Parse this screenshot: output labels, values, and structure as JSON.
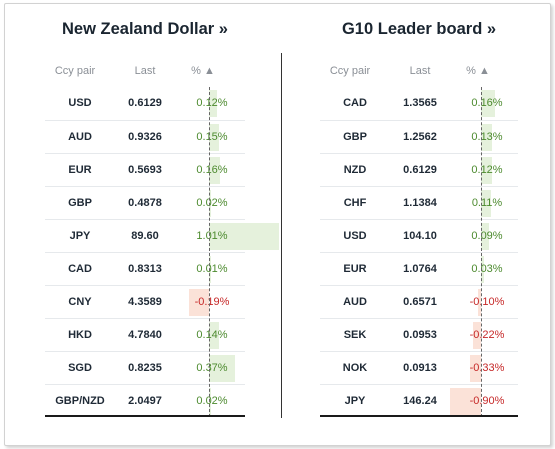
{
  "left_panel": {
    "title": "New Zealand Dollar »",
    "headers": {
      "pair": "Ccy pair",
      "last": "Last",
      "pct": "% ▲"
    },
    "rows": [
      {
        "pair": "USD",
        "last": "0.6129",
        "pct": "0.12%",
        "value": 0.12
      },
      {
        "pair": "AUD",
        "last": "0.9326",
        "pct": "0.15%",
        "value": 0.15
      },
      {
        "pair": "EUR",
        "last": "0.5693",
        "pct": "0.16%",
        "value": 0.16
      },
      {
        "pair": "GBP",
        "last": "0.4878",
        "pct": "0.02%",
        "value": 0.02
      },
      {
        "pair": "JPY",
        "last": "89.60",
        "pct": "1.01%",
        "value": 1.01
      },
      {
        "pair": "CAD",
        "last": "0.8313",
        "pct": "0.01%",
        "value": 0.01
      },
      {
        "pair": "CNY",
        "last": "4.3589",
        "pct": "-0.19%",
        "value": -0.19
      },
      {
        "pair": "HKD",
        "last": "4.7840",
        "pct": "0.14%",
        "value": 0.14
      },
      {
        "pair": "SGD",
        "last": "0.8235",
        "pct": "0.37%",
        "value": 0.37
      },
      {
        "pair": "GBP/NZD",
        "last": "2.0497",
        "pct": "0.02%",
        "value": 0.02
      }
    ]
  },
  "right_panel": {
    "title": "G10 Leader board »",
    "headers": {
      "pair": "Ccy pair",
      "last": "Last",
      "pct": "% ▲"
    },
    "rows": [
      {
        "pair": "CAD",
        "last": "1.3565",
        "pct": "0.16%",
        "value": 0.16
      },
      {
        "pair": "GBP",
        "last": "1.2562",
        "pct": "0.13%",
        "value": 0.13
      },
      {
        "pair": "NZD",
        "last": "0.6129",
        "pct": "0.12%",
        "value": 0.12
      },
      {
        "pair": "CHF",
        "last": "1.1384",
        "pct": "0.11%",
        "value": 0.11
      },
      {
        "pair": "USD",
        "last": "104.10",
        "pct": "0.09%",
        "value": 0.09
      },
      {
        "pair": "EUR",
        "last": "1.0764",
        "pct": "0.03%",
        "value": 0.03
      },
      {
        "pair": "AUD",
        "last": "0.6571",
        "pct": "-0.10%",
        "value": -0.1
      },
      {
        "pair": "SEK",
        "last": "0.0953",
        "pct": "-0.22%",
        "value": -0.22
      },
      {
        "pair": "NOK",
        "last": "0.0913",
        "pct": "-0.33%",
        "value": -0.33
      },
      {
        "pair": "JPY",
        "last": "146.24",
        "pct": "-0.90%",
        "value": -0.9
      }
    ]
  },
  "colors": {
    "positive_text": "#4c8a2e",
    "negative_text": "#c62828",
    "positive_bar": "#e5f1dc",
    "negative_bar": "#fbe2d8"
  }
}
